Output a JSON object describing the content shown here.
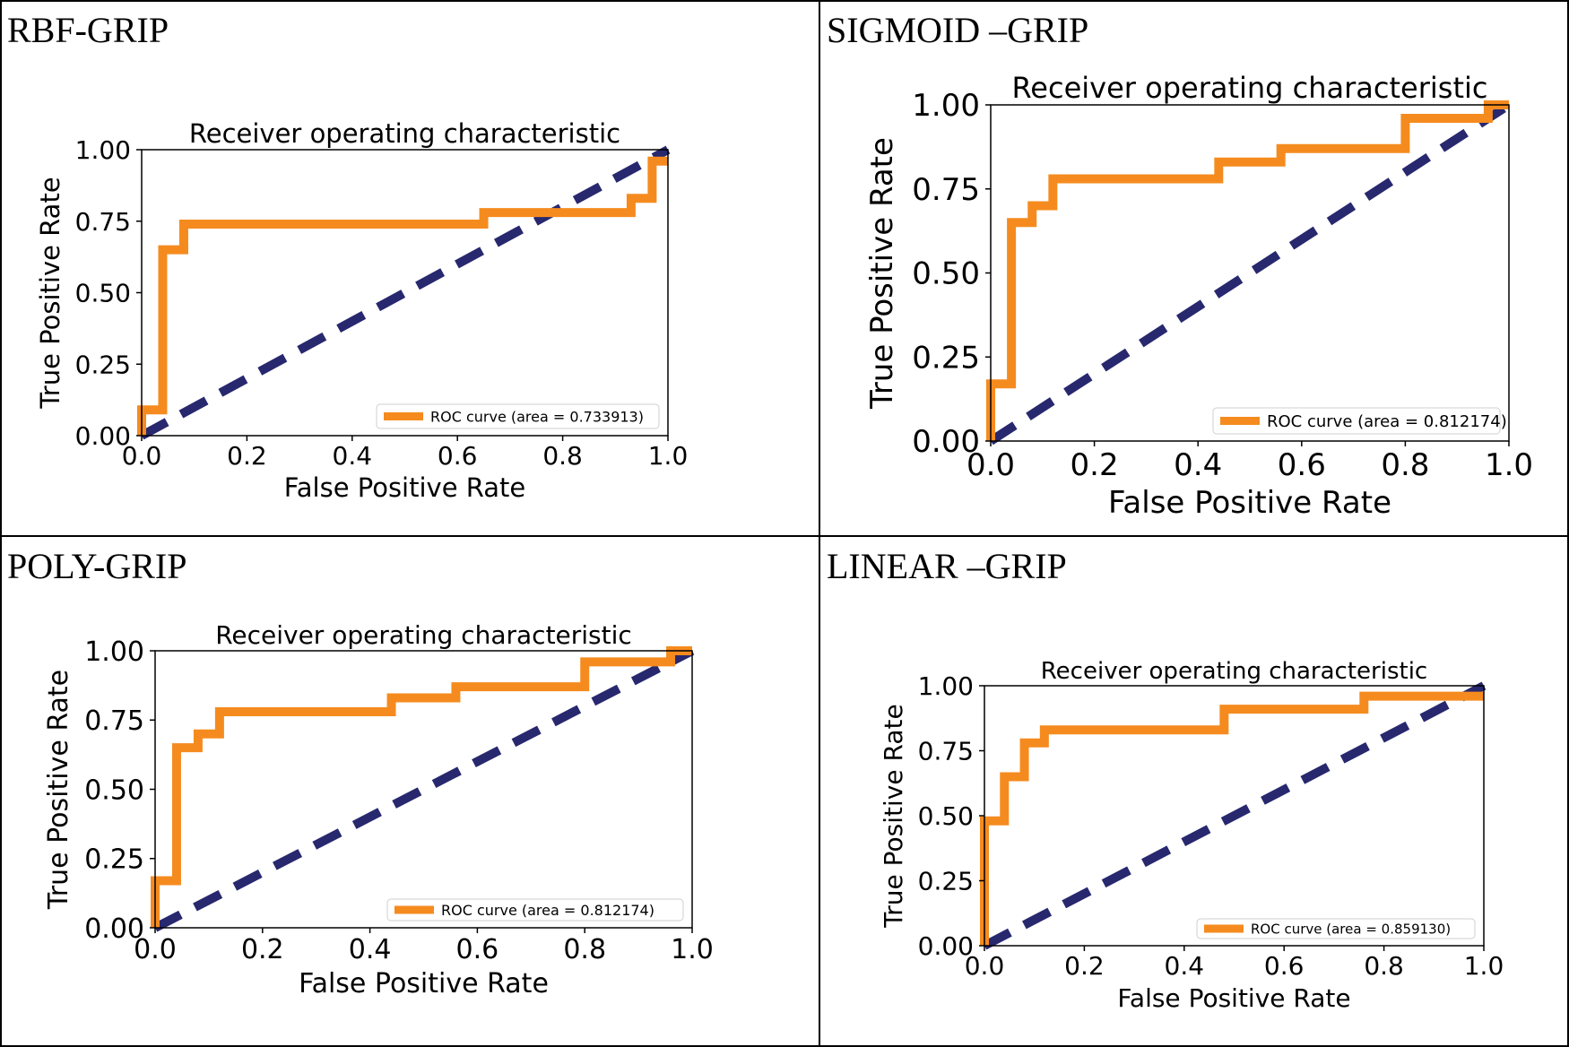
{
  "panels": [
    {
      "label": "RBF-GRIP"
    },
    {
      "label": "SIGMOID –GRIP"
    },
    {
      "label": "POLY-GRIP"
    },
    {
      "label": "LINEAR –GRIP"
    }
  ],
  "colors": {
    "roc": "#f58b1f",
    "diagonal": "#27286e",
    "frame": "#000000"
  },
  "chart_data": [
    {
      "type": "line",
      "title": "Receiver operating characteristic",
      "xlabel": "False Positive Rate",
      "ylabel": "True Positive Rate",
      "xlim": [
        0,
        1
      ],
      "ylim": [
        0,
        1
      ],
      "xticks": [
        "0.0",
        "0.2",
        "0.4",
        "0.6",
        "0.8",
        "1.0"
      ],
      "yticks": [
        "0.00",
        "0.25",
        "0.50",
        "0.75",
        "1.00"
      ],
      "legend": "lower right",
      "series": [
        {
          "name": "ROC curve (area = 0.733913)",
          "x": [
            0,
            0,
            0.04,
            0.04,
            0.08,
            0.08,
            0.65,
            0.65,
            0.93,
            0.93,
            0.97,
            0.97,
            1.0
          ],
          "y": [
            0,
            0.09,
            0.09,
            0.65,
            0.65,
            0.74,
            0.74,
            0.78,
            0.78,
            0.83,
            0.83,
            0.96,
            0.96
          ]
        },
        {
          "x": [
            0,
            1
          ],
          "y": [
            0,
            1
          ],
          "style": "dashed"
        }
      ]
    },
    {
      "type": "line",
      "title": "Receiver operating characteristic",
      "xlabel": "False Positive Rate",
      "ylabel": "True Positive Rate",
      "xlim": [
        0,
        1
      ],
      "ylim": [
        0,
        1
      ],
      "xticks": [
        "0.0",
        "0.2",
        "0.4",
        "0.6",
        "0.8",
        "1.0"
      ],
      "yticks": [
        "0.00",
        "0.25",
        "0.50",
        "0.75",
        "1.00"
      ],
      "legend": "lower right",
      "series": [
        {
          "name": "ROC curve (area = 0.812174)",
          "x": [
            0,
            0,
            0.04,
            0.04,
            0.08,
            0.08,
            0.12,
            0.12,
            0.44,
            0.44,
            0.56,
            0.56,
            0.8,
            0.8,
            0.96,
            0.96,
            1.0
          ],
          "y": [
            0,
            0.17,
            0.17,
            0.65,
            0.65,
            0.7,
            0.7,
            0.78,
            0.78,
            0.83,
            0.83,
            0.87,
            0.87,
            0.96,
            0.96,
            1.0,
            1.0
          ]
        },
        {
          "x": [
            0,
            1
          ],
          "y": [
            0,
            1
          ],
          "style": "dashed"
        }
      ]
    },
    {
      "type": "line",
      "title": "Receiver operating characteristic",
      "xlabel": "False Positive Rate",
      "ylabel": "True Positive Rate",
      "xlim": [
        0,
        1
      ],
      "ylim": [
        0,
        1
      ],
      "xticks": [
        "0.0",
        "0.2",
        "0.4",
        "0.6",
        "0.8",
        "1.0"
      ],
      "yticks": [
        "0.00",
        "0.25",
        "0.50",
        "0.75",
        "1.00"
      ],
      "legend": "lower right",
      "series": [
        {
          "name": "ROC curve (area = 0.812174)",
          "x": [
            0,
            0,
            0.04,
            0.04,
            0.08,
            0.08,
            0.12,
            0.12,
            0.44,
            0.44,
            0.56,
            0.56,
            0.8,
            0.8,
            0.96,
            0.96,
            1.0
          ],
          "y": [
            0,
            0.17,
            0.17,
            0.65,
            0.65,
            0.7,
            0.7,
            0.78,
            0.78,
            0.83,
            0.83,
            0.87,
            0.87,
            0.96,
            0.96,
            1.0,
            1.0
          ]
        },
        {
          "x": [
            0,
            1
          ],
          "y": [
            0,
            1
          ],
          "style": "dashed"
        }
      ]
    },
    {
      "type": "line",
      "title": "Receiver operating characteristic",
      "xlabel": "False Positive Rate",
      "ylabel": "True Positive Rate",
      "xlim": [
        0,
        1
      ],
      "ylim": [
        0,
        1
      ],
      "xticks": [
        "0.0",
        "0.2",
        "0.4",
        "0.6",
        "0.8",
        "1.0"
      ],
      "yticks": [
        "0.00",
        "0.25",
        "0.50",
        "0.75",
        "1.00"
      ],
      "legend": "lower right",
      "series": [
        {
          "name": "ROC curve (area = 0.859130)",
          "x": [
            0,
            0,
            0.04,
            0.04,
            0.08,
            0.08,
            0.12,
            0.12,
            0.48,
            0.48,
            0.76,
            0.76,
            0.96,
            0.96,
            1.0
          ],
          "y": [
            0,
            0.48,
            0.48,
            0.65,
            0.65,
            0.78,
            0.78,
            0.83,
            0.83,
            0.91,
            0.91,
            0.96,
            0.96,
            0.96,
            0.96
          ]
        },
        {
          "x": [
            0,
            1
          ],
          "y": [
            0,
            1
          ],
          "style": "dashed"
        }
      ]
    }
  ]
}
